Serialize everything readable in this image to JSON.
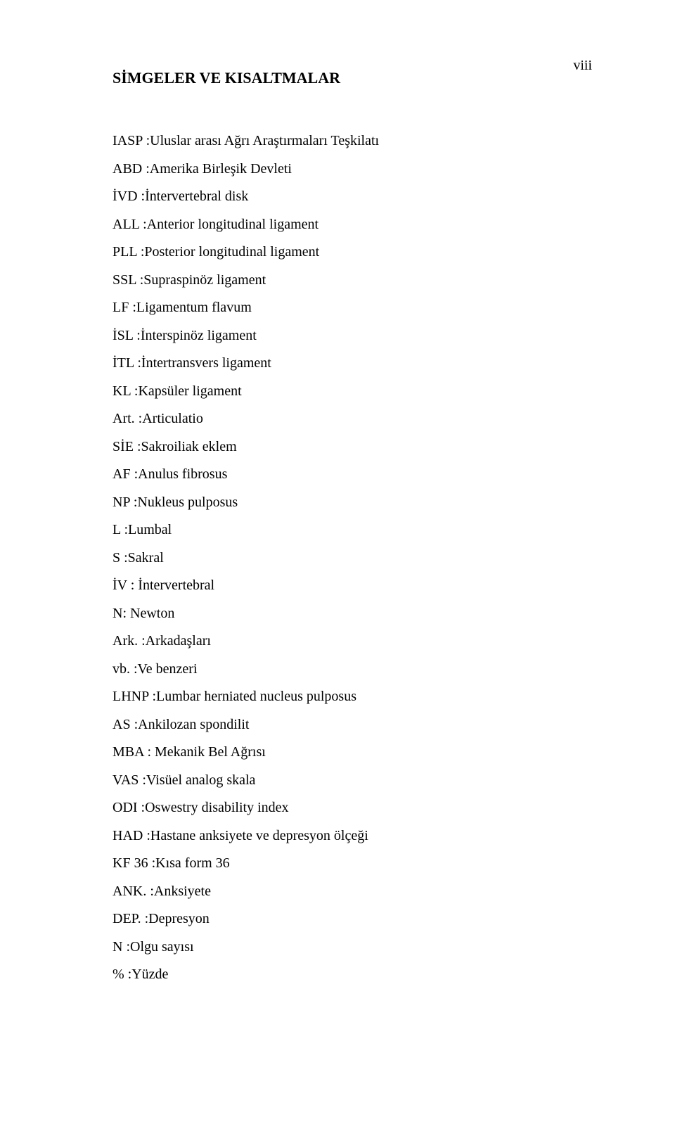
{
  "page_number": "viii",
  "section_title": "SİMGELER VE KISALTMALAR",
  "entries": [
    "IASP :Uluslar arası Ağrı Araştırmaları Teşkilatı",
    "ABD :Amerika Birleşik Devleti",
    "İVD :İntervertebral disk",
    "ALL :Anterior longitudinal ligament",
    "PLL :Posterior longitudinal ligament",
    "SSL :Supraspinöz ligament",
    "LF :Ligamentum flavum",
    "İSL :İnterspinöz ligament",
    "İTL :İntertransvers ligament",
    "KL :Kapsüler ligament",
    "Art. :Articulatio",
    "SİE :Sakroiliak eklem",
    "AF :Anulus fibrosus",
    "NP :Nukleus pulposus",
    "L :Lumbal",
    "S :Sakral",
    "İV : İntervertebral",
    "N: Newton",
    "Ark. :Arkadaşları",
    "vb. :Ve benzeri",
    "LHNP :Lumbar herniated nucleus pulposus",
    "AS :Ankilozan spondilit",
    "MBA : Mekanik Bel Ağrısı",
    "VAS :Visüel analog skala",
    "ODI :Oswestry disability index",
    "HAD :Hastane anksiyete ve depresyon ölçeği",
    "KF 36 :Kısa form 36",
    "ANK. :Anksiyete",
    "DEP. :Depresyon",
    "N :Olgu sayısı",
    "% :Yüzde"
  ]
}
